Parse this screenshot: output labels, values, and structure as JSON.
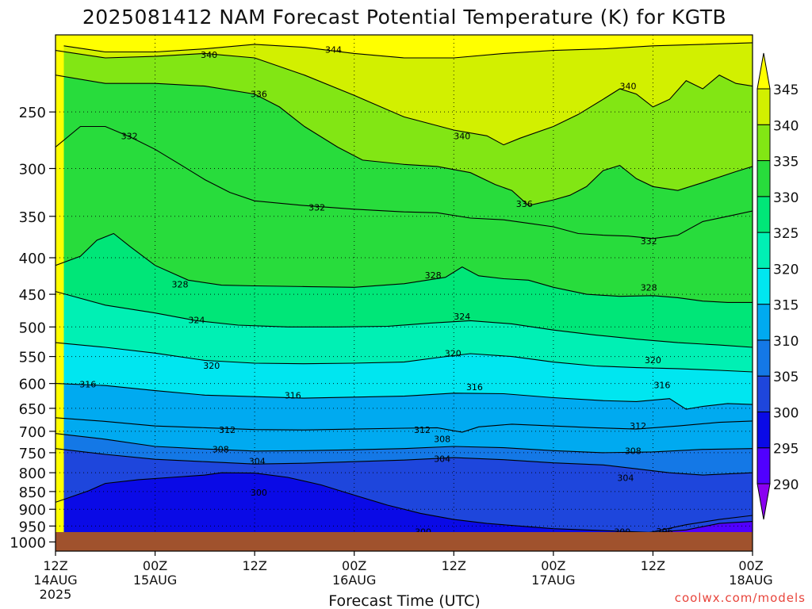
{
  "chart_data": {
    "type": "heatmap",
    "title": "2025081412 NAM Forecast Potential Temperature (K) for KGTB",
    "xlabel": "Forecast Time (UTC)",
    "ylabel": "",
    "credit": "coolwx.com/models",
    "y_scale": "log",
    "y_inverted": true,
    "ylim": [
      1030,
      195
    ],
    "y_ticks": [
      250,
      300,
      350,
      400,
      450,
      500,
      550,
      600,
      650,
      700,
      750,
      800,
      850,
      900,
      950,
      1000
    ],
    "x_hours": [
      0,
      84
    ],
    "x_ticks": [
      {
        "h": 0,
        "top": "12Z",
        "mid": "14AUG",
        "bot": "2025"
      },
      {
        "h": 12,
        "top": "00Z",
        "mid": "15AUG",
        "bot": ""
      },
      {
        "h": 24,
        "top": "12Z",
        "mid": "",
        "bot": ""
      },
      {
        "h": 36,
        "top": "00Z",
        "mid": "16AUG",
        "bot": ""
      },
      {
        "h": 48,
        "top": "12Z",
        "mid": "",
        "bot": ""
      },
      {
        "h": 60,
        "top": "00Z",
        "mid": "17AUG",
        "bot": ""
      },
      {
        "h": 72,
        "top": "12Z",
        "mid": "",
        "bot": ""
      },
      {
        "h": 84,
        "top": "00Z",
        "mid": "18AUG",
        "bot": ""
      }
    ],
    "colorbar": {
      "levels": [
        290,
        295,
        300,
        305,
        310,
        315,
        320,
        325,
        330,
        335,
        340,
        345
      ],
      "colors": [
        "#8a00f0",
        "#5000ff",
        "#0a0ae6",
        "#1e46dc",
        "#1478e6",
        "#00aaf0",
        "#00e6f0",
        "#00f0b4",
        "#00e678",
        "#28dc3c",
        "#82e614",
        "#d2f000",
        "#ffff00"
      ]
    },
    "grid": true,
    "ground_color": "#a0522d",
    "contours": [
      {
        "value": 344,
        "pts": [
          [
            1,
            202
          ],
          [
            6,
            206
          ],
          [
            12,
            206
          ],
          [
            18,
            204
          ],
          [
            24,
            201
          ],
          [
            30,
            203
          ],
          [
            36,
            207
          ],
          [
            42,
            210
          ],
          [
            48,
            210
          ],
          [
            54,
            207
          ],
          [
            60,
            205
          ],
          [
            66,
            204
          ],
          [
            72,
            202
          ],
          [
            78,
            201
          ],
          [
            84,
            200
          ]
        ],
        "labels": [
          {
            "h": 33.5,
            "p": 204.5
          }
        ]
      },
      {
        "value": 340,
        "pts": [
          [
            0,
            205
          ],
          [
            6,
            210
          ],
          [
            12,
            209
          ],
          [
            18,
            207
          ],
          [
            24,
            210
          ],
          [
            30,
            222
          ],
          [
            36,
            237
          ],
          [
            42,
            254
          ],
          [
            48,
            265
          ],
          [
            52,
            270
          ],
          [
            54,
            278
          ],
          [
            56,
            272
          ],
          [
            60,
            262
          ],
          [
            63,
            252
          ],
          [
            66,
            240
          ],
          [
            68,
            232
          ],
          [
            70,
            236
          ],
          [
            72,
            246
          ],
          [
            74,
            240
          ],
          [
            76,
            226
          ],
          [
            78,
            232
          ],
          [
            80,
            222
          ],
          [
            82,
            228
          ],
          [
            84,
            230
          ]
        ],
        "labels": [
          {
            "h": 18.5,
            "p": 208
          },
          {
            "h": 49,
            "p": 270
          },
          {
            "h": 69,
            "p": 230
          }
        ]
      },
      {
        "value": 336,
        "pts": [
          [
            0,
            222
          ],
          [
            6,
            228
          ],
          [
            12,
            228
          ],
          [
            18,
            230
          ],
          [
            24,
            236
          ],
          [
            27,
            246
          ],
          [
            30,
            262
          ],
          [
            34,
            280
          ],
          [
            37,
            292
          ],
          [
            42,
            296
          ],
          [
            46,
            298
          ],
          [
            50,
            304
          ],
          [
            53,
            316
          ],
          [
            55,
            322
          ],
          [
            57,
            338
          ],
          [
            60,
            332
          ],
          [
            62,
            327
          ],
          [
            64,
            318
          ],
          [
            66,
            302
          ],
          [
            68,
            297
          ],
          [
            70,
            310
          ],
          [
            72,
            318
          ],
          [
            75,
            322
          ],
          [
            78,
            314
          ],
          [
            82,
            303
          ],
          [
            84,
            298
          ]
        ],
        "labels": [
          {
            "h": 24.5,
            "p": 236
          },
          {
            "h": 56.5,
            "p": 336
          }
        ]
      },
      {
        "value": 332,
        "pts": [
          [
            0,
            280
          ],
          [
            3,
            262
          ],
          [
            6,
            262
          ],
          [
            9,
            271
          ],
          [
            12,
            282
          ],
          [
            15,
            296
          ],
          [
            18,
            311
          ],
          [
            21,
            324
          ],
          [
            24,
            333
          ],
          [
            30,
            338
          ],
          [
            36,
            342
          ],
          [
            42,
            345
          ],
          [
            46,
            346
          ],
          [
            50,
            352
          ],
          [
            54,
            354
          ],
          [
            57,
            358
          ],
          [
            60,
            362
          ],
          [
            63,
            370
          ],
          [
            66,
            372
          ],
          [
            69,
            373
          ],
          [
            72,
            376
          ],
          [
            75,
            372
          ],
          [
            78,
            356
          ],
          [
            81,
            350
          ],
          [
            84,
            344
          ]
        ],
        "labels": [
          {
            "h": 8.9,
            "p": 270
          },
          {
            "h": 31.5,
            "p": 340
          },
          {
            "h": 71.5,
            "p": 379
          }
        ]
      },
      {
        "value": 328,
        "pts": [
          [
            0,
            410
          ],
          [
            3,
            398
          ],
          [
            5,
            378
          ],
          [
            7,
            370
          ],
          [
            9,
            386
          ],
          [
            12,
            410
          ],
          [
            16,
            430
          ],
          [
            20,
            437
          ],
          [
            24,
            438
          ],
          [
            30,
            439
          ],
          [
            36,
            440
          ],
          [
            42,
            435
          ],
          [
            47,
            426
          ],
          [
            49,
            412
          ],
          [
            51,
            424
          ],
          [
            54,
            428
          ],
          [
            57,
            430
          ],
          [
            60,
            440
          ],
          [
            64,
            450
          ],
          [
            68,
            453
          ],
          [
            72,
            452
          ],
          [
            75,
            455
          ],
          [
            78,
            460
          ],
          [
            81,
            462
          ],
          [
            84,
            462
          ]
        ],
        "labels": [
          {
            "h": 15,
            "p": 436
          },
          {
            "h": 45.5,
            "p": 423
          },
          {
            "h": 71.5,
            "p": 440
          }
        ]
      },
      {
        "value": 324,
        "pts": [
          [
            0,
            446
          ],
          [
            6,
            466
          ],
          [
            12,
            478
          ],
          [
            17,
            490
          ],
          [
            22,
            497
          ],
          [
            28,
            500
          ],
          [
            34,
            500
          ],
          [
            40,
            499
          ],
          [
            45,
            494
          ],
          [
            50,
            490
          ],
          [
            55,
            495
          ],
          [
            60,
            505
          ],
          [
            65,
            513
          ],
          [
            70,
            520
          ],
          [
            75,
            526
          ],
          [
            80,
            530
          ],
          [
            84,
            534
          ]
        ],
        "labels": [
          {
            "h": 17,
            "p": 489
          },
          {
            "h": 49,
            "p": 483
          }
        ]
      },
      {
        "value": 320,
        "pts": [
          [
            0,
            526
          ],
          [
            6,
            534
          ],
          [
            12,
            544
          ],
          [
            18,
            557
          ],
          [
            24,
            562
          ],
          [
            30,
            563
          ],
          [
            36,
            562
          ],
          [
            42,
            560
          ],
          [
            46,
            552
          ],
          [
            50,
            545
          ],
          [
            55,
            550
          ],
          [
            60,
            560
          ],
          [
            65,
            567
          ],
          [
            70,
            570
          ],
          [
            75,
            572
          ],
          [
            80,
            575
          ],
          [
            84,
            578
          ]
        ],
        "labels": [
          {
            "h": 18.8,
            "p": 566
          },
          {
            "h": 47.9,
            "p": 544
          },
          {
            "h": 72,
            "p": 556
          }
        ]
      },
      {
        "value": 316,
        "pts": [
          [
            0,
            600
          ],
          [
            6,
            604
          ],
          [
            12,
            614
          ],
          [
            18,
            623
          ],
          [
            24,
            626
          ],
          [
            30,
            629
          ],
          [
            36,
            627
          ],
          [
            42,
            625
          ],
          [
            48,
            619
          ],
          [
            54,
            620
          ],
          [
            60,
            628
          ],
          [
            66,
            634
          ],
          [
            70,
            636
          ],
          [
            74,
            630
          ],
          [
            76,
            652
          ],
          [
            78,
            646
          ],
          [
            81,
            640
          ],
          [
            84,
            642
          ]
        ],
        "labels": [
          {
            "h": 3.9,
            "p": 601
          },
          {
            "h": 28.6,
            "p": 623
          },
          {
            "h": 50.5,
            "p": 607
          },
          {
            "h": 73.1,
            "p": 603
          }
        ]
      },
      {
        "value": 312,
        "pts": [
          [
            0,
            670
          ],
          [
            6,
            678
          ],
          [
            12,
            688
          ],
          [
            18,
            692
          ],
          [
            24,
            696
          ],
          [
            30,
            697
          ],
          [
            36,
            695
          ],
          [
            42,
            693
          ],
          [
            46,
            692
          ],
          [
            49,
            702
          ],
          [
            51,
            690
          ],
          [
            55,
            684
          ],
          [
            60,
            688
          ],
          [
            65,
            692
          ],
          [
            70,
            695
          ],
          [
            75,
            688
          ],
          [
            80,
            680
          ],
          [
            84,
            677
          ]
        ],
        "labels": [
          {
            "h": 20.7,
            "p": 697
          },
          {
            "h": 44.2,
            "p": 697
          },
          {
            "h": 70.2,
            "p": 688
          }
        ]
      },
      {
        "value": 308,
        "pts": [
          [
            0,
            705
          ],
          [
            6,
            718
          ],
          [
            12,
            735
          ],
          [
            18,
            741
          ],
          [
            24,
            746
          ],
          [
            30,
            745
          ],
          [
            36,
            743
          ],
          [
            42,
            740
          ],
          [
            48,
            735
          ],
          [
            54,
            738
          ],
          [
            60,
            745
          ],
          [
            66,
            750
          ],
          [
            72,
            748
          ],
          [
            78,
            742
          ],
          [
            84,
            740
          ]
        ],
        "labels": [
          {
            "h": 19.9,
            "p": 742
          },
          {
            "h": 46.6,
            "p": 717
          },
          {
            "h": 69.6,
            "p": 745
          }
        ]
      },
      {
        "value": 304,
        "pts": [
          [
            0,
            740
          ],
          [
            6,
            754
          ],
          [
            12,
            766
          ],
          [
            18,
            772
          ],
          [
            24,
            778
          ],
          [
            30,
            776
          ],
          [
            36,
            772
          ],
          [
            42,
            768
          ],
          [
            48,
            762
          ],
          [
            54,
            767
          ],
          [
            60,
            775
          ],
          [
            66,
            780
          ],
          [
            70,
            790
          ],
          [
            74,
            800
          ],
          [
            78,
            806
          ],
          [
            84,
            800
          ]
        ],
        "labels": [
          {
            "h": 24.3,
            "p": 771
          },
          {
            "h": 46.6,
            "p": 765
          },
          {
            "h": 68.7,
            "p": 813
          }
        ]
      },
      {
        "value": 300,
        "pts": [
          [
            0,
            880
          ],
          [
            4,
            848
          ],
          [
            6,
            828
          ],
          [
            10,
            818
          ],
          [
            14,
            812
          ],
          [
            18,
            806
          ],
          [
            20,
            800
          ],
          [
            24,
            801
          ],
          [
            28,
            812
          ],
          [
            32,
            832
          ],
          [
            36,
            860
          ],
          [
            40,
            888
          ],
          [
            44,
            912
          ],
          [
            48,
            930
          ],
          [
            52,
            942
          ],
          [
            56,
            950
          ],
          [
            60,
            958
          ],
          [
            64,
            962
          ],
          [
            68,
            966
          ],
          [
            72,
            970
          ],
          [
            76,
            962
          ],
          [
            80,
            942
          ],
          [
            84,
            936
          ]
        ],
        "labels": [
          {
            "h": 24.5,
            "p": 853
          },
          {
            "h": 44.3,
            "p": 968
          },
          {
            "h": 68.3,
            "p": 968
          }
        ]
      },
      {
        "value": 296,
        "pts": [
          [
            68,
            985
          ],
          [
            72,
            968
          ],
          [
            76,
            946
          ],
          [
            80,
            930
          ],
          [
            84,
            918
          ]
        ],
        "labels": [
          {
            "h": 73.4,
            "p": 966
          }
        ]
      }
    ]
  }
}
